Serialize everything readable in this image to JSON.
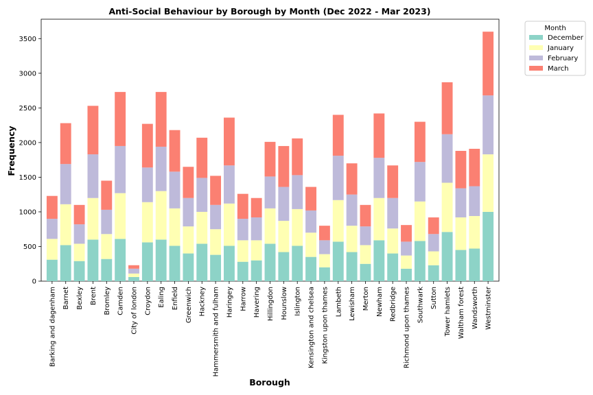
{
  "chart_data": {
    "type": "bar",
    "stacked": true,
    "title": "Anti-Social Behaviour by Borough by Month (Dec 2022 - Mar 2023)",
    "xlabel": "Borough",
    "ylabel": "Frequency",
    "ylim": [
      0,
      3780
    ],
    "yticks": [
      0,
      500,
      1000,
      1500,
      2000,
      2500,
      3000,
      3500
    ],
    "grid": false,
    "legend": {
      "title": "Month",
      "placement": "outside-top-right"
    },
    "categories": [
      "Barking and dagenham",
      "Barnet",
      "Bexley",
      "Brent",
      "Bromley",
      "Camden",
      "City of london",
      "Croydon",
      "Ealing",
      "Enfield",
      "Greenwich",
      "Hackney",
      "Hammersmith and fulham",
      "Haringey",
      "Harrow",
      "Havering",
      "Hillingdon",
      "Hounslow",
      "Islington",
      "Kensington and chelsea",
      "Kingston upon thames",
      "Lambeth",
      "Lewisham",
      "Merton",
      "Newham",
      "Redbridge",
      "Richmond upon thames",
      "Southwark",
      "Sutton",
      "Tower hamlets",
      "Waltham forest",
      "Wandsworth",
      "Westminster"
    ],
    "series": [
      {
        "name": "December",
        "color": "#8dd3c7",
        "values": [
          310,
          520,
          290,
          600,
          320,
          610,
          60,
          560,
          600,
          510,
          400,
          540,
          380,
          510,
          280,
          300,
          540,
          420,
          510,
          350,
          200,
          570,
          420,
          250,
          590,
          400,
          180,
          580,
          230,
          710,
          450,
          470,
          1000
        ]
      },
      {
        "name": "January",
        "color": "#ffffb3",
        "values": [
          300,
          590,
          250,
          600,
          360,
          660,
          50,
          580,
          700,
          540,
          390,
          460,
          370,
          610,
          310,
          290,
          510,
          450,
          530,
          350,
          190,
          600,
          380,
          270,
          610,
          360,
          190,
          570,
          200,
          710,
          470,
          470,
          830
        ]
      },
      {
        "name": "February",
        "color": "#bebada",
        "values": [
          290,
          580,
          280,
          630,
          350,
          680,
          70,
          500,
          640,
          530,
          410,
          490,
          350,
          550,
          310,
          330,
          460,
          490,
          490,
          320,
          200,
          640,
          450,
          270,
          580,
          440,
          200,
          570,
          250,
          700,
          420,
          430,
          850
        ]
      },
      {
        "name": "March",
        "color": "#fb8072",
        "values": [
          330,
          590,
          280,
          700,
          420,
          780,
          50,
          630,
          790,
          600,
          450,
          580,
          420,
          690,
          360,
          280,
          500,
          590,
          530,
          340,
          210,
          590,
          450,
          310,
          640,
          470,
          240,
          580,
          240,
          750,
          540,
          540,
          920
        ]
      }
    ]
  }
}
